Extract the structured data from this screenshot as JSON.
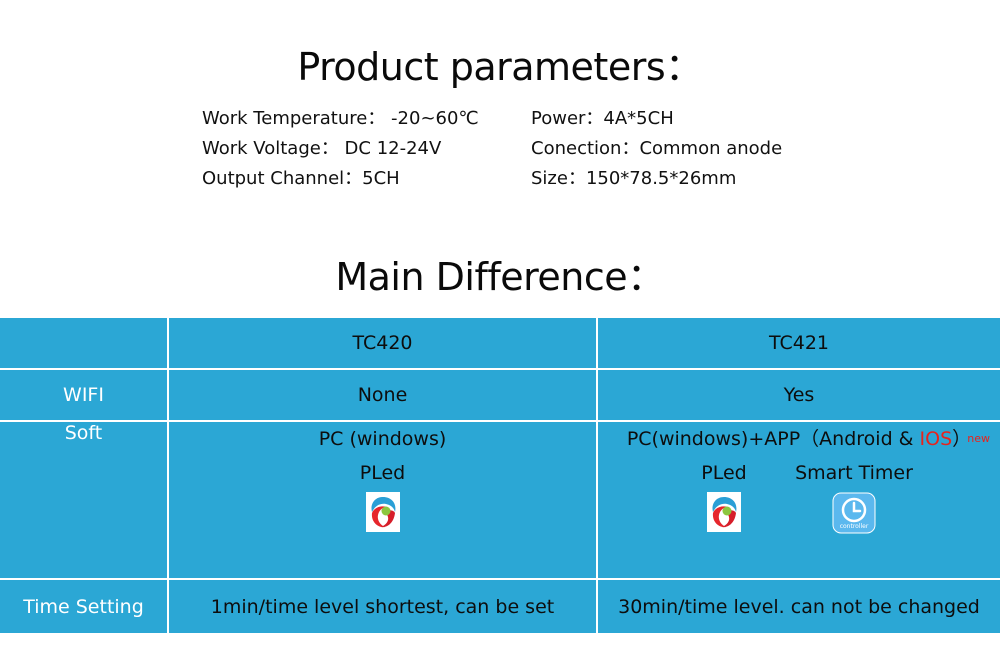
{
  "title_params": "Product parameters：",
  "params": {
    "left": [
      "Work Temperature：  -20~60℃",
      "Work Voltage：  DC 12-24V",
      "Output Channel：5CH"
    ],
    "right": [
      "Power：4A*5CH",
      "Conection：Common anode",
      "Size：150*78.5*26mm"
    ]
  },
  "title_diff": "Main Difference：",
  "table": {
    "header": {
      "col1": "",
      "col2": "TC420",
      "col3": "TC421"
    },
    "wifi": {
      "label": "WIFI",
      "tc420": "None",
      "tc421": "Yes"
    },
    "soft": {
      "label": "Soft",
      "tc420_line1": "PC (windows)",
      "tc420_app": "PLed",
      "tc421_line1_prefix": "PC(windows)+APP（Android & ",
      "tc421_ios": "IOS",
      "tc421_line1_suffix": "）",
      "tc421_new": "new",
      "tc421_app1": "PLed",
      "tc421_app2": "Smart  Timer"
    },
    "time": {
      "label": "Time Setting",
      "tc420": "1min/time level shortest, can be set",
      "tc421": "30min/time level. can not be changed"
    }
  },
  "icons": {
    "pled": "pled-app-icon",
    "smart_timer": "smart-timer-app-icon",
    "smart_timer_text": "controller"
  },
  "colors": {
    "table_bg": "#2ba7d5",
    "ios": "#e8231c"
  }
}
